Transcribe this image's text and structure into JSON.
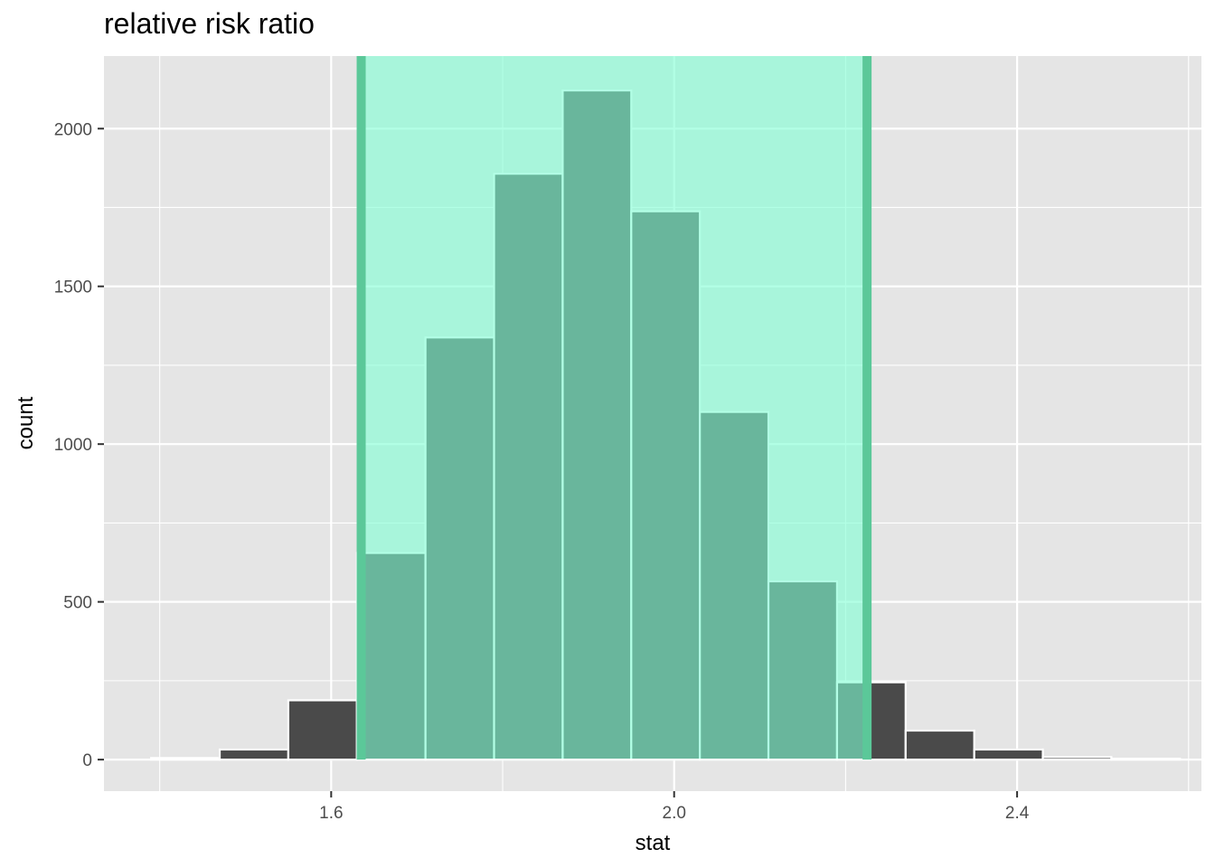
{
  "chart_data": {
    "type": "bar",
    "title": "relative risk ratio",
    "xlabel": "stat",
    "ylabel": "count",
    "xlim": [
      1.335,
      2.615
    ],
    "ylim": [
      -100,
      2230
    ],
    "x_ticks": [
      1.6,
      2.0,
      2.4
    ],
    "x_tick_labels": [
      "1.6",
      "2.0",
      "2.4"
    ],
    "y_ticks": [
      0,
      500,
      1000,
      1500,
      2000
    ],
    "y_tick_labels": [
      "0",
      "500",
      "1000",
      "1500",
      "2000"
    ],
    "bin_width": 0.08,
    "bin_centers": [
      1.43,
      1.51,
      1.59,
      1.67,
      1.75,
      1.83,
      1.91,
      1.99,
      2.07,
      2.15,
      2.23,
      2.31,
      2.39,
      2.47,
      2.55
    ],
    "counts": [
      5,
      32,
      188,
      655,
      1338,
      1857,
      2121,
      1738,
      1102,
      565,
      245,
      92,
      32,
      8,
      3
    ],
    "shaded_interval": [
      1.635,
      2.225
    ],
    "grid": true,
    "colors": {
      "panel": "#e5e5e5",
      "grid": "#ffffff",
      "bar_fill": "#4a4a4a",
      "bar_outline": "#ffffff",
      "shade_fill": "#7fffd4",
      "shade_opacity": 0.6,
      "shade_edge": "#5bc899"
    }
  }
}
